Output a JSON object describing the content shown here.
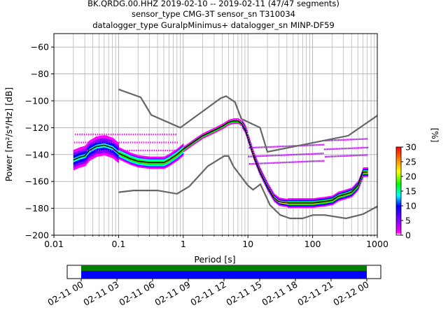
{
  "title": {
    "line1": "BK.QRDG.00.HHZ   2019-02-10 -- 2019-02-11  (47/47 segments)",
    "line2": "sensor_type CMG-3T sensor_sn T310034",
    "line3": "datalogger_type GuralpMinimus+ datalogger_sn MINP-DF59"
  },
  "chart_data": [
    {
      "type": "heatmap",
      "xlabel": "Period [s]",
      "ylabel": "Power [m²/s⁴/Hz] [dB]",
      "xscale": "log",
      "xlim": [
        0.01,
        1000
      ],
      "ylim": [
        -200,
        -50
      ],
      "xticks": [
        0.01,
        0.1,
        1,
        10,
        100,
        1000
      ],
      "xtick_labels": [
        "0.01",
        "0.1",
        "1",
        "10",
        "100",
        "1000"
      ],
      "yticks": [
        -200,
        -180,
        -160,
        -140,
        -120,
        -100,
        -80,
        -60
      ],
      "grid": true,
      "noise_models": {
        "color": "#666666",
        "high": {
          "x": [
            0.1,
            0.22,
            0.32,
            0.9,
            3.8,
            4.6,
            6.3,
            7.9,
            15.4,
            20,
            354.8,
            1000
          ],
          "y": [
            -91.5,
            -97.4,
            -110.5,
            -120,
            -98,
            -96.5,
            -101,
            -113.4,
            -120,
            -138,
            -126,
            -111
          ]
        },
        "low": {
          "x": [
            0.1,
            0.17,
            0.4,
            0.8,
            1.24,
            2.4,
            4.3,
            5,
            6,
            10,
            12,
            15.6,
            21.9,
            31.6,
            45,
            70,
            101,
            154,
            328,
            600,
            1000
          ],
          "y": [
            -168,
            -166.7,
            -166.7,
            -169.2,
            -163.7,
            -148.6,
            -141.1,
            -141.1,
            -149,
            -163,
            -166.2,
            -162.1,
            -177.5,
            -185,
            -187.5,
            -187.5,
            -185,
            -185,
            -187.5,
            -184.4,
            -178.6
          ]
        }
      },
      "mode_line": {
        "color": "#000000",
        "x": [
          0.02,
          0.025,
          0.03,
          0.035,
          0.045,
          0.06,
          0.08,
          0.1,
          0.15,
          0.2,
          0.3,
          0.4,
          0.5,
          0.6,
          0.8,
          1,
          1.5,
          2,
          3,
          4,
          5,
          6,
          7,
          8,
          9,
          10,
          12,
          15,
          20,
          25,
          30,
          40,
          50,
          70,
          100,
          150,
          200,
          250,
          300,
          400,
          500,
          600,
          700
        ],
        "y": [
          -144,
          -142,
          -141,
          -137,
          -134,
          -133,
          -135,
          -139,
          -143,
          -145,
          -146,
          -146,
          -146,
          -144,
          -140,
          -136,
          -130,
          -126,
          -122,
          -119,
          -116,
          -115,
          -115,
          -117,
          -121,
          -128,
          -140,
          -152,
          -164,
          -172,
          -175,
          -176,
          -176,
          -176,
          -176,
          -175,
          -174,
          -171,
          -170,
          -168,
          -163,
          -153,
          -153
        ]
      },
      "colorbar": {
        "label": "[%]",
        "min": 0,
        "max": 30,
        "ticks": [
          0,
          5,
          10,
          15,
          20,
          25,
          30
        ]
      }
    },
    {
      "type": "timeline",
      "tick_labels": [
        "02-11 00",
        "02-11 03",
        "02-11 06",
        "02-11 09",
        "02-11 12",
        "02-11 15",
        "02-11 18",
        "02-11 21",
        "02-12 00"
      ],
      "bars": [
        {
          "color": "#008000"
        },
        {
          "color": "#0000ff"
        }
      ]
    }
  ]
}
